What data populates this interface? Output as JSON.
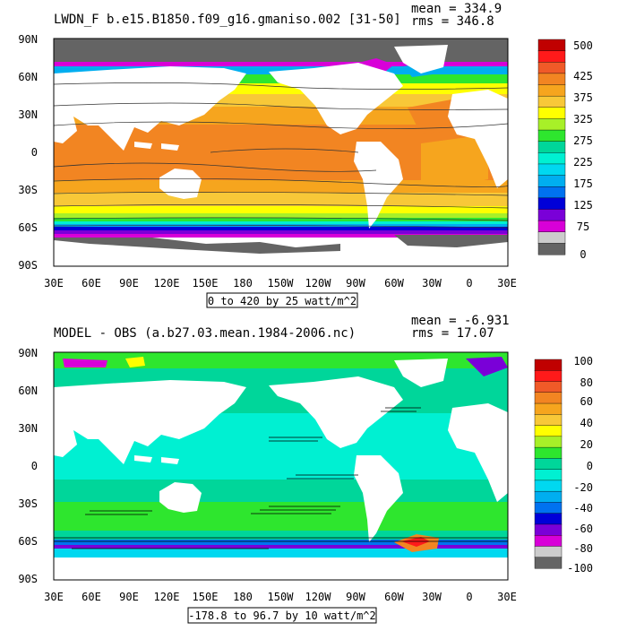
{
  "panels": [
    {
      "title": "LWDN_F b.e15.B1850.f09_g16.gmaniso.002 [31-50]",
      "mean_label": "mean = 334.9",
      "rms_label": "rms = 346.8",
      "range_label": "0 to 420 by 25 watt/m^2",
      "lat_labels": [
        "90N",
        "60N",
        "30N",
        "0",
        "30S",
        "60S",
        "90S"
      ],
      "lon_labels": [
        "30E",
        "60E",
        "90E",
        "120E",
        "150E",
        "180",
        "150W",
        "120W",
        "90W",
        "60W",
        "30W",
        "0",
        "30E"
      ],
      "colorbar": {
        "labels": [
          "500",
          "425",
          "375",
          "325",
          "275",
          "225",
          "175",
          "125",
          "75",
          "0"
        ],
        "colors": [
          "#c00000",
          "#ff1a1a",
          "#f05a28",
          "#f28522",
          "#f6a51e",
          "#f8c838",
          "#ffff00",
          "#a8f028",
          "#2ee62e",
          "#00d69a",
          "#00f0d2",
          "#00d8f0",
          "#00aef0",
          "#0072f0",
          "#0000d8",
          "#7a00d8",
          "#d800d8",
          "#cccccc",
          "#646464"
        ]
      }
    },
    {
      "title": "MODEL - OBS (a.b27.03.mean.1984-2006.nc)",
      "mean_label": "mean = -6.931",
      "rms_label": "rms = 17.07",
      "range_label": "-178.8 to 96.7 by 10 watt/m^2",
      "lat_labels": [
        "90N",
        "60N",
        "30N",
        "0",
        "30S",
        "60S",
        "90S"
      ],
      "lon_labels": [
        "30E",
        "60E",
        "90E",
        "120E",
        "150E",
        "180",
        "150W",
        "120W",
        "90W",
        "60W",
        "30W",
        "0",
        "30E"
      ],
      "colorbar": {
        "labels": [
          "100",
          "80",
          "60",
          "40",
          "20",
          "0",
          "-20",
          "-40",
          "-60",
          "-80",
          "-100"
        ],
        "colors": [
          "#c00000",
          "#ff1a1a",
          "#f05a28",
          "#f28522",
          "#f6a51e",
          "#f8c838",
          "#ffff00",
          "#a8f028",
          "#2ee62e",
          "#00d69a",
          "#00f0d2",
          "#00d8f0",
          "#00aef0",
          "#0072f0",
          "#0000d8",
          "#7a00d8",
          "#d800d8",
          "#cccccc",
          "#646464"
        ]
      }
    }
  ]
}
